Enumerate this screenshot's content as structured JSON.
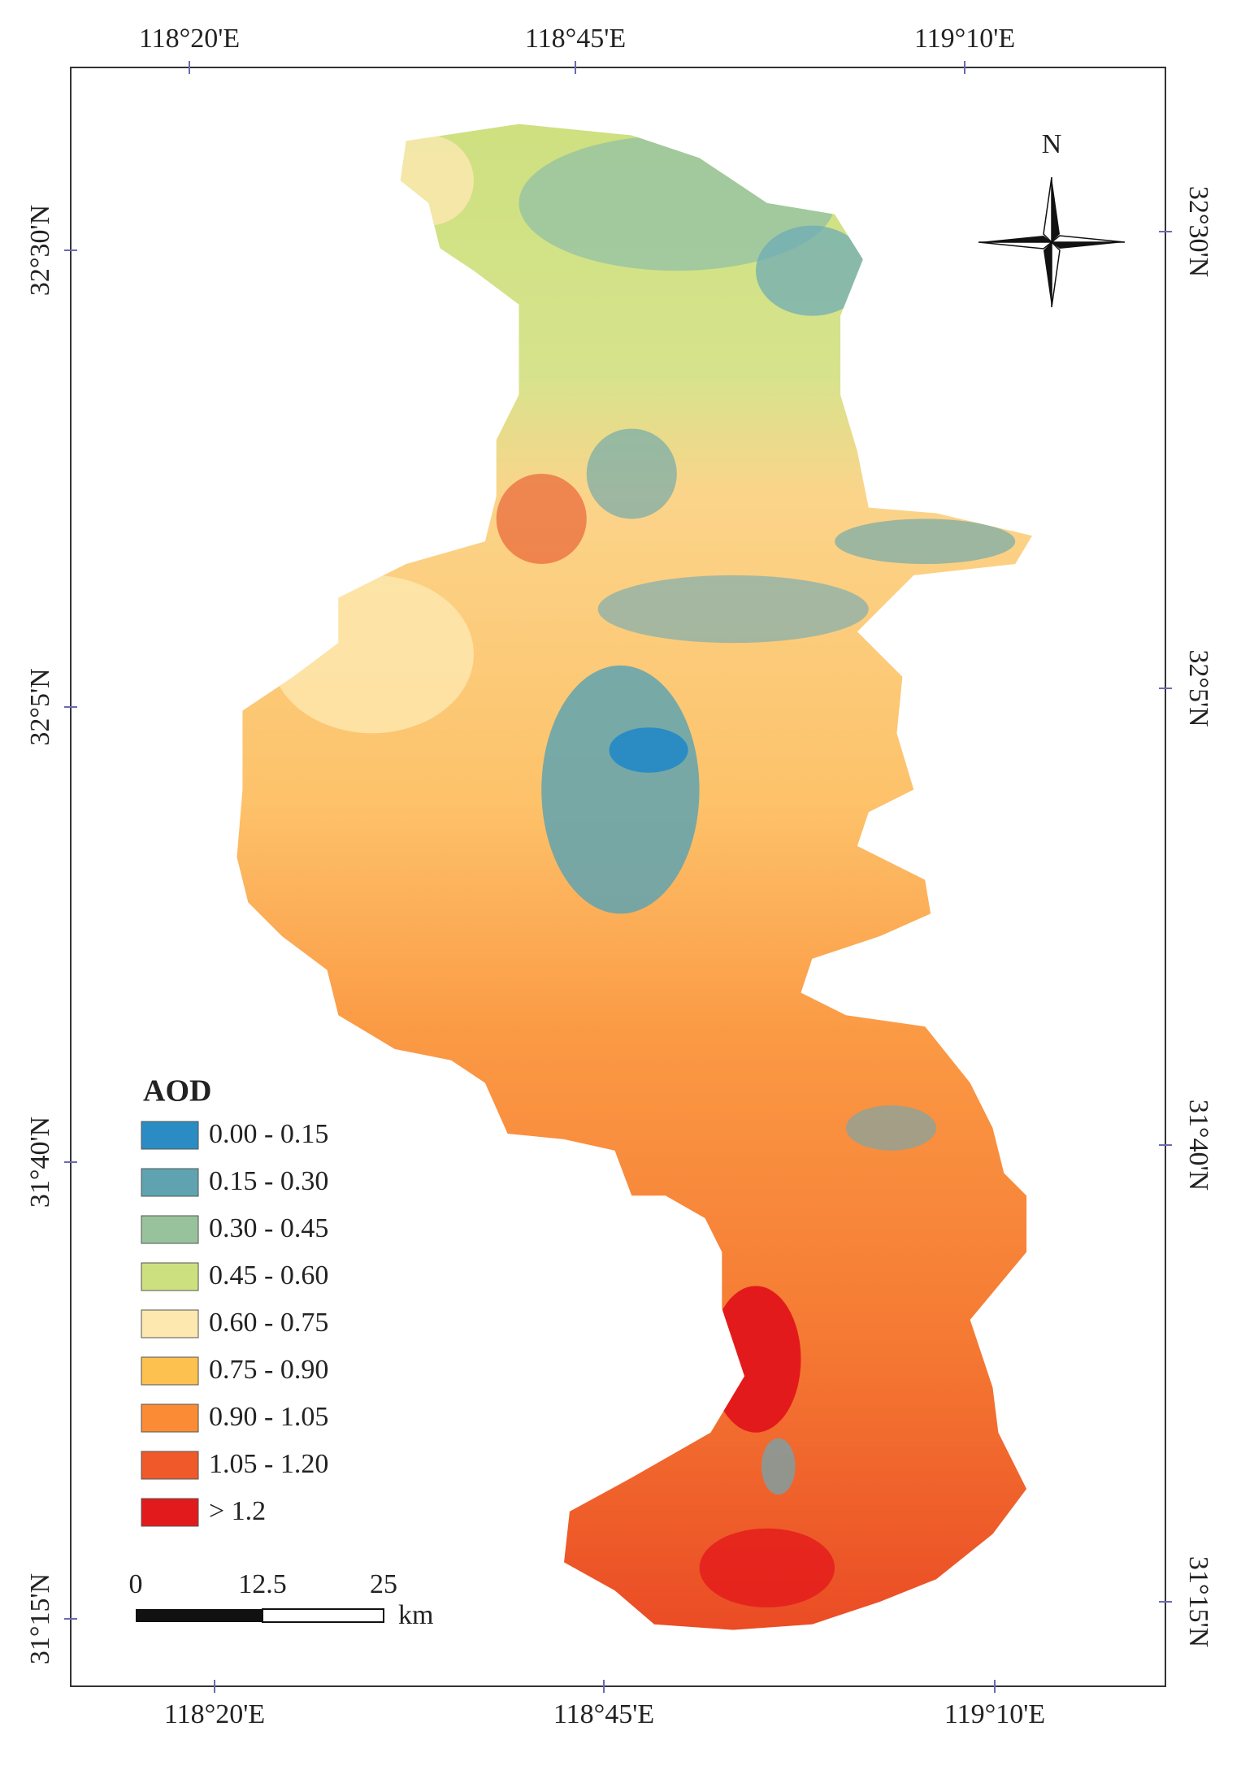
{
  "map": {
    "top_labels": [
      "118°20'E",
      "118°45'E",
      "119°10'E"
    ],
    "bottom_labels": [
      "118°20'E",
      "118°45'E",
      "119°10'E"
    ],
    "left_labels": [
      "32°30'N",
      "32°5'N",
      "31°40'N",
      "31°15'N"
    ],
    "right_labels": [
      "32°30'N",
      "32°5'N",
      "31°40'N",
      "31°15'N"
    ],
    "north": "N",
    "legend": {
      "title": "AOD",
      "items": [
        {
          "label": "0.00 - 0.15",
          "color": "#2b8cc4"
        },
        {
          "label": "0.15 - 0.30",
          "color": "#5fa3b0"
        },
        {
          "label": "0.30 - 0.45",
          "color": "#98c29b"
        },
        {
          "label": "0.45 - 0.60",
          "color": "#cde07f"
        },
        {
          "label": "0.60 - 0.75",
          "color": "#fde8b0"
        },
        {
          "label": "0.75 - 0.90",
          "color": "#fdc150"
        },
        {
          "label": "0.90 - 1.05",
          "color": "#fb8c35"
        },
        {
          "label": "1.05 - 1.20",
          "color": "#f0592a"
        },
        {
          "label": "> 1.2",
          "color": "#e31a1c"
        }
      ]
    },
    "scale": {
      "labels": [
        "0",
        "12.5",
        "25"
      ],
      "unit": "km"
    }
  }
}
